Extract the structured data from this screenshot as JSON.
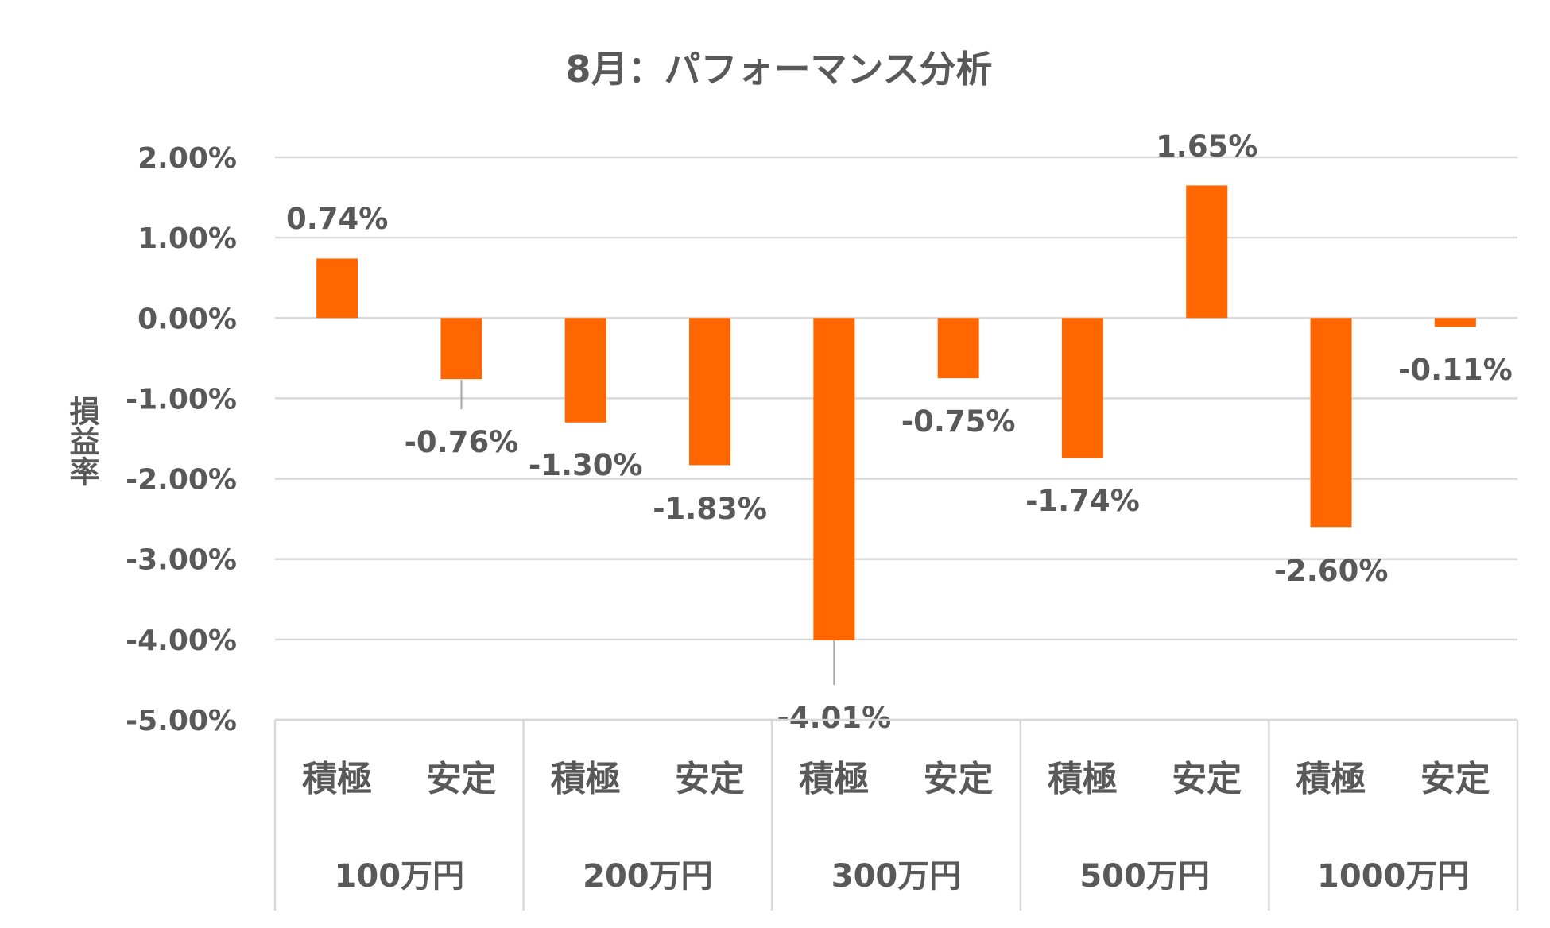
{
  "chart_data": {
    "type": "bar",
    "title": "8月：パフォーマンス分析",
    "ylabel": "損益率",
    "xlabel": "",
    "ylim": [
      -0.05,
      0.02
    ],
    "yticks": [
      "2.00%",
      "1.00%",
      "0.00%",
      "-1.00%",
      "-2.00%",
      "-3.00%",
      "-4.00%",
      "-5.00%"
    ],
    "ytick_values": [
      0.02,
      0.01,
      0,
      -0.01,
      -0.02,
      -0.03,
      -0.04,
      -0.05
    ],
    "grid": true,
    "bar_color": "#FF6600",
    "groups": [
      "100万円",
      "200万円",
      "300万円",
      "500万円",
      "1000万円"
    ],
    "subcategories": [
      "積極",
      "安定"
    ],
    "values": [
      0.0074,
      -0.0076,
      -0.013,
      -0.0183,
      -0.0401,
      -0.0075,
      -0.0174,
      0.0165,
      -0.026,
      -0.0011
    ],
    "data_labels": [
      "0.74%",
      "-0.76%",
      "-1.30%",
      "-1.83%",
      "-4.01%",
      "-0.75%",
      "-1.74%",
      "1.65%",
      "-2.60%",
      "-0.11%"
    ]
  }
}
